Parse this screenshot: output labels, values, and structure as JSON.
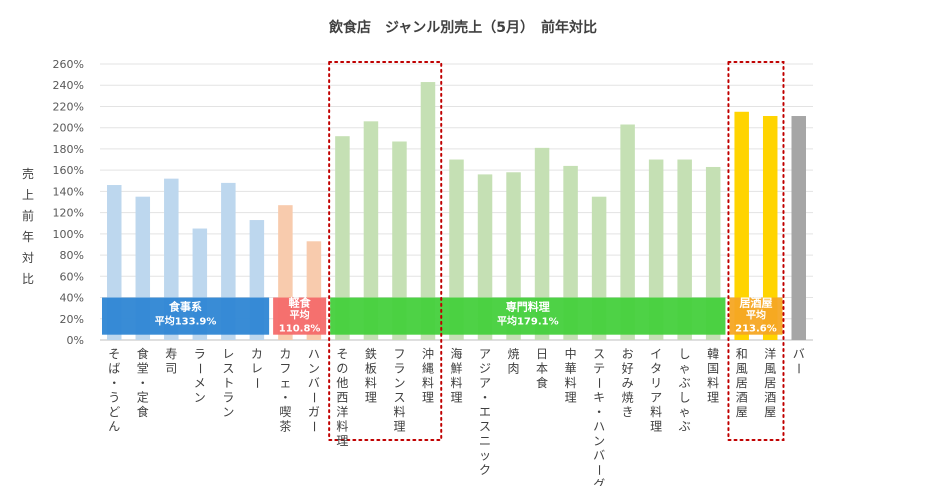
{
  "chart_data": {
    "type": "bar",
    "title": "飲食店　ジャンル別売上（5月）　前年対比",
    "xlabel": "",
    "ylabel": "売上前年対比",
    "ylim": [
      0,
      260
    ],
    "yticks": [
      0,
      20,
      40,
      60,
      80,
      100,
      120,
      140,
      160,
      180,
      200,
      220,
      240,
      260
    ],
    "ytick_labels": [
      "0%",
      "20%",
      "40%",
      "60%",
      "80%",
      "100%",
      "120%",
      "140%",
      "160%",
      "180%",
      "200%",
      "220%",
      "240%",
      "260%"
    ],
    "grid": true,
    "categories": [
      "そば・うどん",
      "食堂・定食",
      "寿司",
      "ラーメン",
      "レストラン",
      "カレー",
      "カフェ・喫茶",
      "ハンバーガー",
      "その他西洋料理",
      "鉄板料理",
      "フランス料理",
      "沖縄料理",
      "海鮮料理",
      "アジア・エスニック",
      "焼肉",
      "日本食",
      "中華料理",
      "ステーキ・ハンバーグ",
      "お好み焼き",
      "イタリア料理",
      "しゃぶしゃぶ",
      "韓国料理",
      "和風居酒屋",
      "洋風居酒屋",
      "バー"
    ],
    "values": [
      146,
      135,
      152,
      105,
      148,
      113,
      127,
      93,
      192,
      206,
      187,
      243,
      170,
      156,
      158,
      181,
      164,
      135,
      203,
      170,
      170,
      163,
      215,
      211,
      211
    ],
    "groups": [
      {
        "name": "食事系",
        "avg_label": "平均133.9%",
        "average": 133.9,
        "start": 0,
        "end": 5,
        "bar_color": "#bdd7ee",
        "band_color": "#2e86d4"
      },
      {
        "name": "軽食",
        "avg_label": "平均",
        "avg_value_label": "110.8%",
        "average": 110.8,
        "start": 6,
        "end": 7,
        "bar_color": "#f8cbad",
        "band_color": "#f46a6a"
      },
      {
        "name": "専門料理",
        "avg_label": "平均179.1%",
        "average": 179.1,
        "start": 8,
        "end": 21,
        "bar_color": "#c5e0b4",
        "band_color": "#45d03c"
      },
      {
        "name": "居酒屋",
        "avg_label": "平均",
        "avg_value_label": "213.6%",
        "average": 213.6,
        "start": 22,
        "end": 23,
        "bar_color": "#ffd400",
        "band_color": "#f5a623"
      },
      {
        "name": "",
        "start": 24,
        "end": 24,
        "bar_color": "#a6a6a6"
      }
    ],
    "highlight_boxes": [
      {
        "start": 8,
        "end": 11,
        "style": "dotted",
        "color": "#c00000"
      },
      {
        "start": 22,
        "end": 23,
        "style": "dotted",
        "color": "#c00000"
      }
    ]
  }
}
